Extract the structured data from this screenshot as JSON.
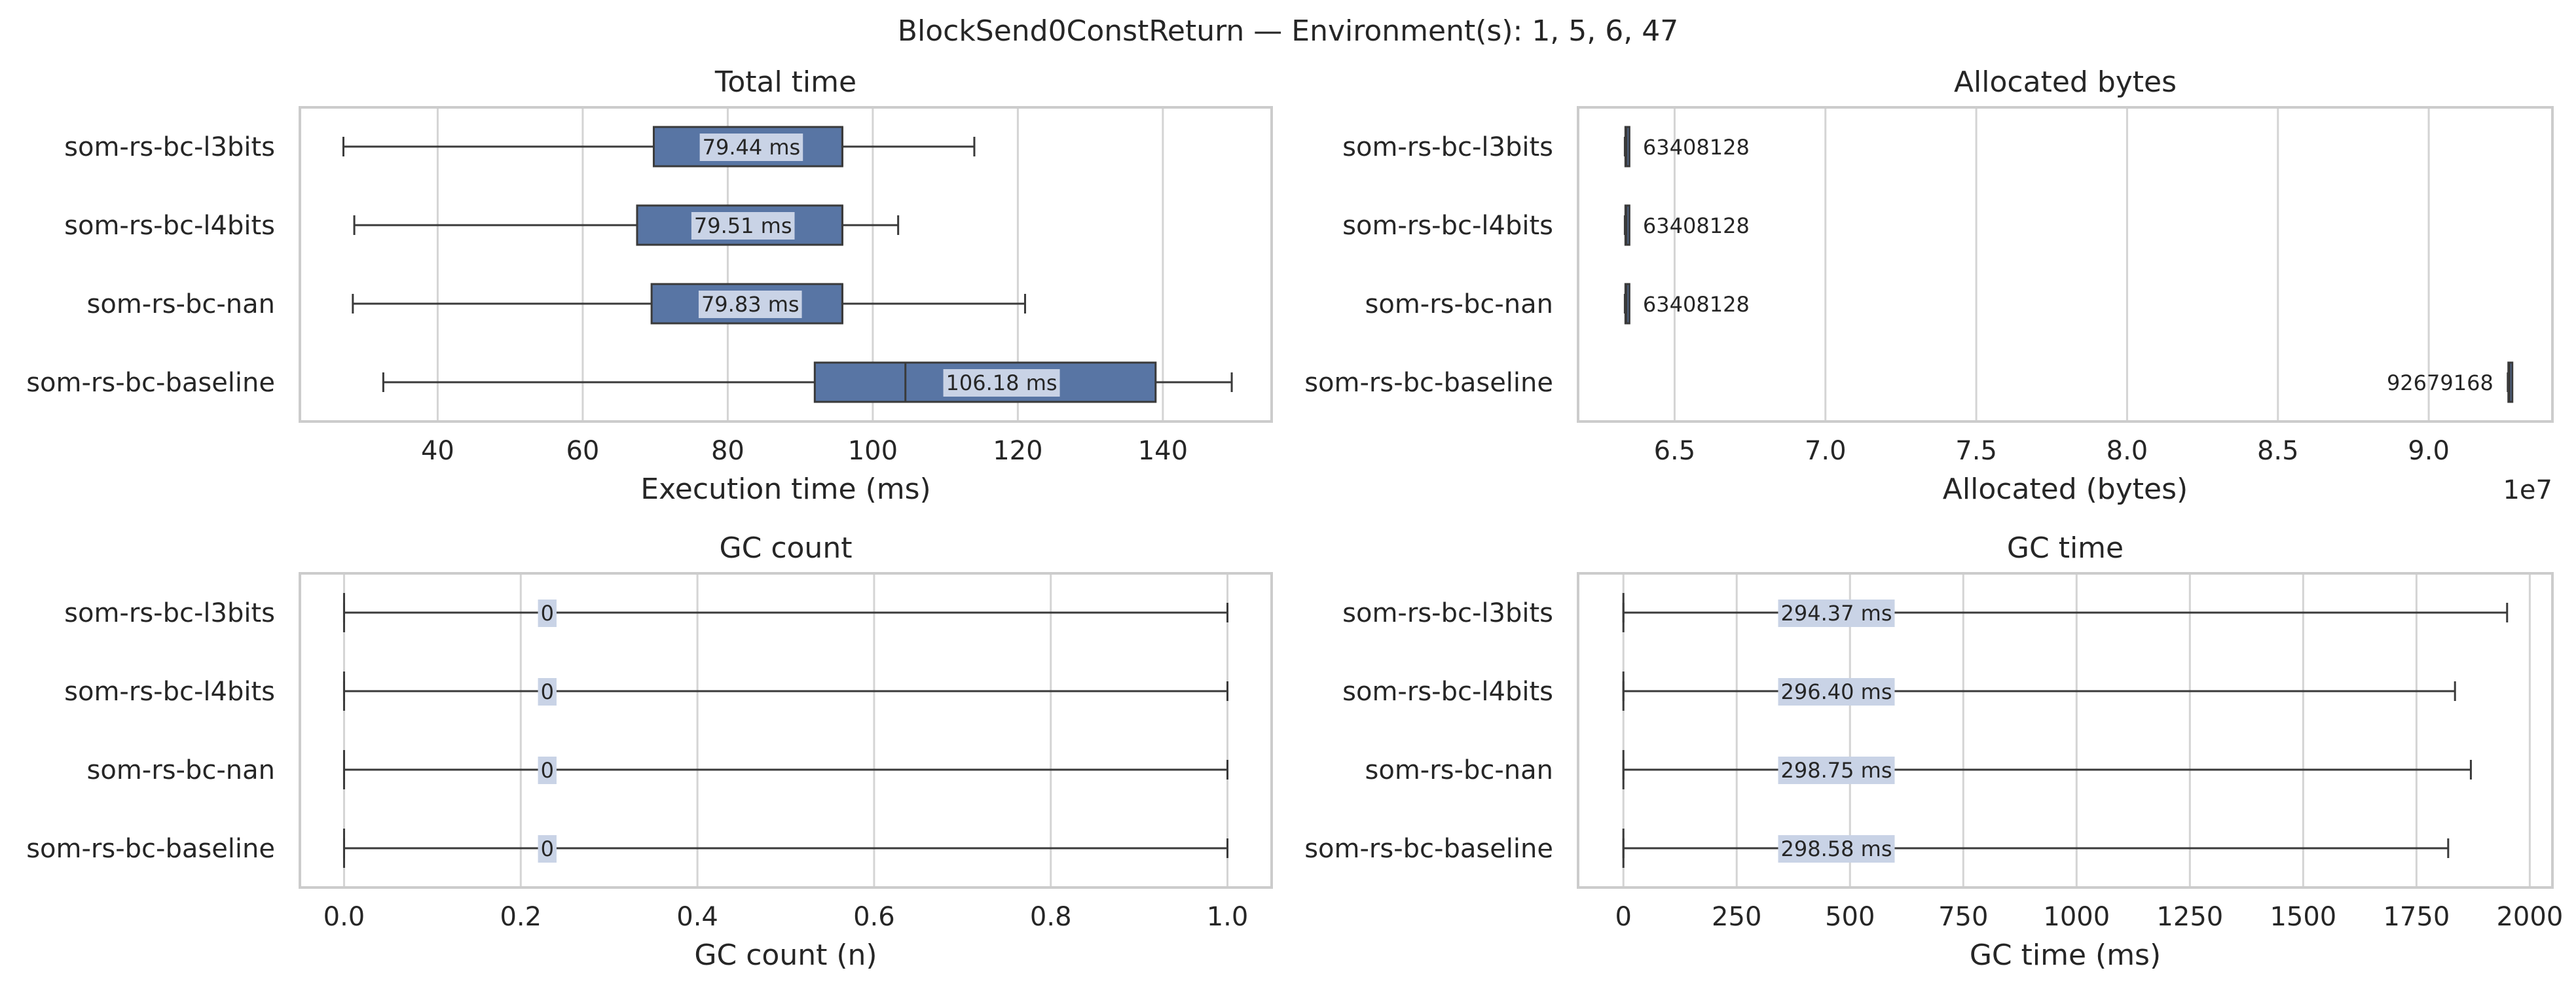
{
  "figure": {
    "title": "BlockSend0ConstReturn — Environment(s): 1, 5, 6, 47"
  },
  "style": {
    "box_fill": "#5875a4",
    "box_edge": "#3a3a3a",
    "label_bg": "#c9d3e6",
    "grid": "#d4d4d4",
    "frame": "#cccccc",
    "text": "#262626"
  },
  "chart_data": [
    {
      "type": "box",
      "title": "Total time",
      "xlabel": "Execution time (ms)",
      "categories": [
        "som-rs-bc-l3bits",
        "som-rs-bc-l4bits",
        "som-rs-bc-nan",
        "som-rs-bc-baseline"
      ],
      "xlim": [
        21,
        155
      ],
      "ticks": [
        40,
        60,
        80,
        100,
        120,
        140
      ],
      "tick_labels": [
        "40",
        "60",
        "80",
        "100",
        "120",
        "140"
      ],
      "boxes": [
        {
          "min": 27,
          "q1": 69.8,
          "median": 95.8,
          "q3": 95.8,
          "max": 114
        },
        {
          "min": 28.5,
          "q1": 67.5,
          "median": 95.8,
          "q3": 95.8,
          "max": 103.5
        },
        {
          "min": 28.3,
          "q1": 69.5,
          "median": 95.8,
          "q3": 95.8,
          "max": 121
        },
        {
          "min": 32.5,
          "q1": 92,
          "median": 104.5,
          "q3": 139,
          "max": 149.5
        }
      ],
      "labels": [
        "79.44 ms",
        "79.51 ms",
        "79.83 ms",
        "106.18 ms"
      ],
      "label_bg": true
    },
    {
      "type": "box",
      "title": "Allocated bytes",
      "xlabel": "Allocated (bytes)",
      "offset_text": "1e7",
      "categories": [
        "som-rs-bc-l3bits",
        "som-rs-bc-l4bits",
        "som-rs-bc-nan",
        "som-rs-bc-baseline"
      ],
      "xlim": [
        6.18,
        9.41
      ],
      "ticks": [
        6.5,
        7.0,
        7.5,
        8.0,
        8.5,
        9.0
      ],
      "tick_labels": [
        "6.5",
        "7.0",
        "7.5",
        "8.0",
        "8.5",
        "9.0"
      ],
      "boxes": [
        {
          "min": 6.335,
          "q1": 6.337,
          "median": 6.3408,
          "q3": 6.345,
          "max": 6.347
        },
        {
          "min": 6.335,
          "q1": 6.337,
          "median": 6.3408,
          "q3": 6.345,
          "max": 6.347
        },
        {
          "min": 6.335,
          "q1": 6.337,
          "median": 6.3408,
          "q3": 6.345,
          "max": 6.347
        },
        {
          "min": 9.262,
          "q1": 9.264,
          "median": 9.2679,
          "q3": 9.272,
          "max": 9.274
        }
      ],
      "labels": [
        "63408128",
        "63408128",
        "63408128",
        "92679168"
      ],
      "label_side": [
        "right",
        "right",
        "right",
        "left"
      ],
      "label_bg": false
    },
    {
      "type": "box",
      "title": "GC count",
      "xlabel": "GC count (n)",
      "categories": [
        "som-rs-bc-l3bits",
        "som-rs-bc-l4bits",
        "som-rs-bc-nan",
        "som-rs-bc-baseline"
      ],
      "xlim": [
        -0.05,
        1.05
      ],
      "ticks": [
        0.0,
        0.2,
        0.4,
        0.6,
        0.8,
        1.0
      ],
      "tick_labels": [
        "0.0",
        "0.2",
        "0.4",
        "0.6",
        "0.8",
        "1.0"
      ],
      "boxes": [
        {
          "min": 0,
          "q1": 0,
          "median": 0,
          "q3": 0,
          "max": 1
        },
        {
          "min": 0,
          "q1": 0,
          "median": 0,
          "q3": 0,
          "max": 1
        },
        {
          "min": 0,
          "q1": 0,
          "median": 0,
          "q3": 0,
          "max": 1
        },
        {
          "min": 0,
          "q1": 0,
          "median": 0,
          "q3": 0,
          "max": 1
        }
      ],
      "labels": [
        "0",
        "0",
        "0",
        "0"
      ],
      "label_at": [
        0.23,
        0.23,
        0.23,
        0.23
      ],
      "label_bg": true
    },
    {
      "type": "box",
      "title": "GC time",
      "xlabel": "GC time (ms)",
      "categories": [
        "som-rs-bc-l3bits",
        "som-rs-bc-l4bits",
        "som-rs-bc-nan",
        "som-rs-bc-baseline"
      ],
      "xlim": [
        -100,
        2050
      ],
      "ticks": [
        0,
        250,
        500,
        750,
        1000,
        1250,
        1500,
        1750,
        2000
      ],
      "tick_labels": [
        "0",
        "250",
        "500",
        "750",
        "1000",
        "1250",
        "1500",
        "1750",
        "2000"
      ],
      "boxes": [
        {
          "min": 0,
          "q1": 0,
          "median": 0,
          "q3": 0,
          "max": 1950
        },
        {
          "min": 0,
          "q1": 0,
          "median": 0,
          "q3": 0,
          "max": 1835
        },
        {
          "min": 0,
          "q1": 0,
          "median": 0,
          "q3": 0,
          "max": 1870
        },
        {
          "min": 0,
          "q1": 0,
          "median": 0,
          "q3": 0,
          "max": 1820
        }
      ],
      "labels": [
        "294.37 ms",
        "296.40 ms",
        "298.75 ms",
        "298.58 ms"
      ],
      "label_at": [
        470,
        470,
        470,
        470
      ],
      "label_bg": true
    }
  ]
}
